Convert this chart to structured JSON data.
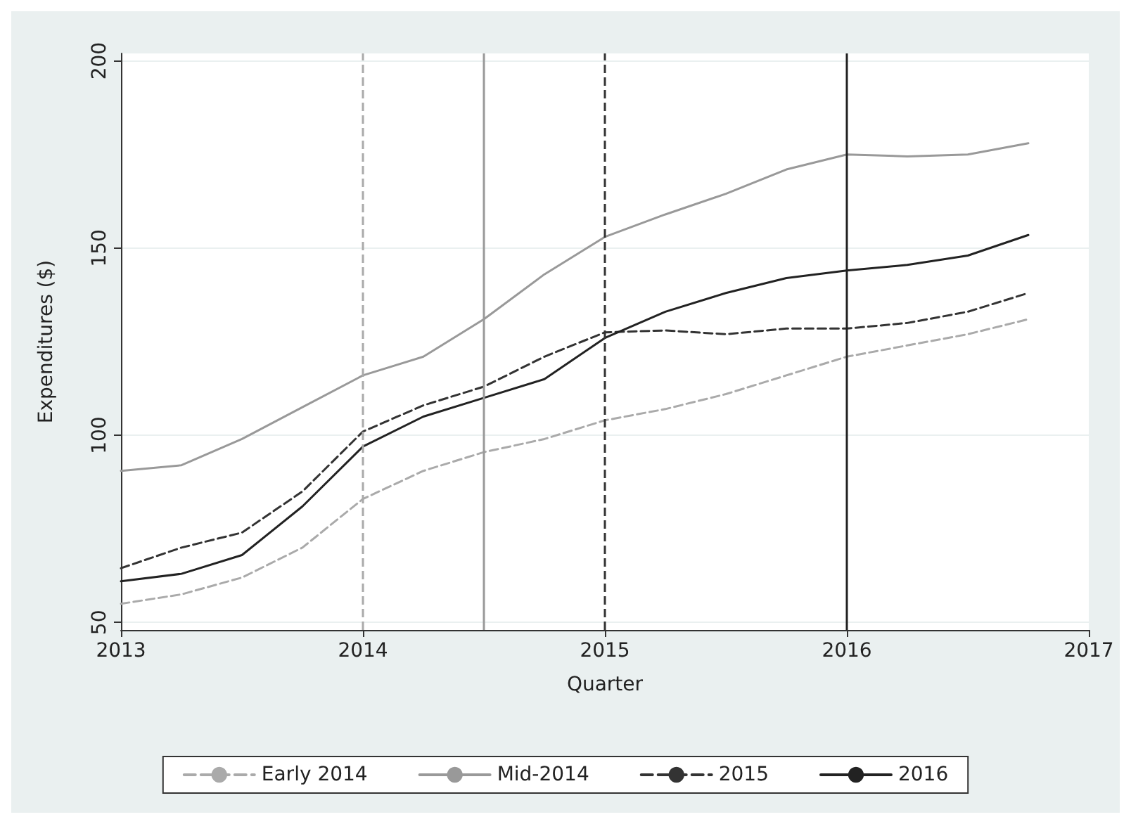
{
  "chart_data": {
    "type": "line",
    "xlabel": "Quarter",
    "ylabel": "Expenditures ($)",
    "x": [
      2013,
      2013.25,
      2013.5,
      2013.75,
      2014,
      2014.25,
      2014.5,
      2014.75,
      2015,
      2015.25,
      2015.5,
      2015.75,
      2016,
      2016.25,
      2016.5,
      2016.75
    ],
    "series": [
      {
        "name": "Early 2014",
        "color": "#aaaaaa",
        "line_style": "dashed",
        "values": [
          55,
          57.5,
          62,
          70,
          83,
          90.5,
          95.5,
          99,
          104,
          107,
          111,
          116,
          121,
          124,
          127,
          131
        ]
      },
      {
        "name": "Mid-2014",
        "color": "#999999",
        "line_style": "solid",
        "values": [
          90.5,
          92,
          99,
          107.5,
          116,
          121,
          131,
          143,
          153,
          159,
          164.5,
          171,
          175,
          174.5,
          175,
          178
        ]
      },
      {
        "name": "2015",
        "color": "#333333",
        "line_style": "dashed",
        "values": [
          64.5,
          70,
          74,
          85,
          101,
          108,
          113,
          121,
          127.5,
          128,
          127,
          128.5,
          128.5,
          130,
          133,
          138
        ]
      },
      {
        "name": "2016",
        "color": "#222222",
        "line_style": "solid",
        "values": [
          61,
          63,
          68,
          81,
          97,
          105,
          110,
          115,
          126,
          133,
          138,
          142,
          144,
          145.5,
          148,
          153.5
        ]
      }
    ],
    "xlim": [
      2013,
      2017
    ],
    "xticks": [
      2013,
      2014,
      2015,
      2016,
      2017
    ],
    "ylim": [
      48,
      202
    ],
    "yticks": [
      50,
      100,
      150,
      200
    ],
    "ref_lines": [
      {
        "axis": "x",
        "value": 2014,
        "color": "#aaaaaa",
        "line_style": "dashed"
      },
      {
        "axis": "x",
        "value": 2014.5,
        "color": "#999999",
        "line_style": "solid"
      },
      {
        "axis": "x",
        "value": 2015,
        "color": "#333333",
        "line_style": "dashed"
      },
      {
        "axis": "x",
        "value": 2016,
        "color": "#222222",
        "line_style": "solid"
      }
    ],
    "grid": "y",
    "legend": "bottom",
    "marker": "none"
  }
}
